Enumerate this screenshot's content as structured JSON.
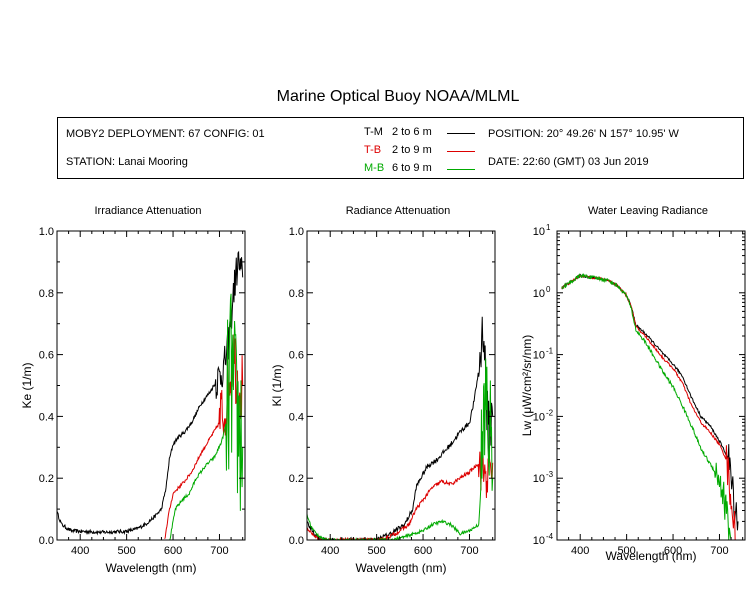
{
  "title": "Marine Optical Buoy NOAA/MLML",
  "info": {
    "deployment": "MOBY2 DEPLOYMENT: 67 CONFIG: 01",
    "station": "STATION: Lanai Mooring",
    "position": "POSITION: 20° 49.26' N   157° 10.95' W",
    "date": "DATE: 22:60 (GMT) 03 Jun 2019",
    "legend": [
      {
        "code": "T-M",
        "range": "2 to 6  m",
        "color": "#000000"
      },
      {
        "code": "T-B",
        "range": "2 to 9  m",
        "color": "#dd0000"
      },
      {
        "code": "M-B",
        "range": "6 to 9  m",
        "color": "#00aa00"
      }
    ]
  },
  "chart_data": [
    {
      "type": "line",
      "title": "Irradiance Attenuation",
      "xlabel": "Wavelength (nm)",
      "ylabel": "Ke  (1/m)",
      "xlim": [
        350,
        755
      ],
      "ylim": [
        0,
        1.0
      ],
      "xticks": [
        400,
        500,
        600,
        700
      ],
      "yticks": [
        "0.0",
        "0.2",
        "0.4",
        "0.6",
        "0.8",
        "1.0"
      ],
      "series": [
        {
          "name": "T-M",
          "color": "#000000",
          "noise": 0.006,
          "noisy_from": 690,
          "noisy_amp": 0.06,
          "points": [
            [
              350,
              0.09
            ],
            [
              360,
              0.05
            ],
            [
              380,
              0.03
            ],
            [
              400,
              0.028
            ],
            [
              450,
              0.025
            ],
            [
              500,
              0.028
            ],
            [
              520,
              0.035
            ],
            [
              540,
              0.05
            ],
            [
              560,
              0.075
            ],
            [
              575,
              0.1
            ],
            [
              585,
              0.17
            ],
            [
              592,
              0.26
            ],
            [
              600,
              0.31
            ],
            [
              610,
              0.33
            ],
            [
              625,
              0.35
            ],
            [
              640,
              0.38
            ],
            [
              660,
              0.44
            ],
            [
              680,
              0.48
            ],
            [
              700,
              0.53
            ],
            [
              710,
              0.56
            ],
            [
              720,
              0.64
            ],
            [
              730,
              0.8
            ],
            [
              740,
              0.9
            ],
            [
              750,
              0.85
            ]
          ]
        },
        {
          "name": "T-B",
          "color": "#dd0000",
          "noise": 0.005,
          "noisy_from": 700,
          "noisy_amp": 0.12,
          "points": [
            [
              582,
              0.0
            ],
            [
              590,
              0.08
            ],
            [
              600,
              0.15
            ],
            [
              612,
              0.17
            ],
            [
              625,
              0.19
            ],
            [
              640,
              0.22
            ],
            [
              660,
              0.28
            ],
            [
              680,
              0.33
            ],
            [
              700,
              0.38
            ],
            [
              710,
              0.42
            ],
            [
              720,
              0.5
            ],
            [
              730,
              0.62
            ],
            [
              740,
              0.5
            ],
            [
              750,
              0.5
            ]
          ]
        },
        {
          "name": "M-B",
          "color": "#00aa00",
          "noise": 0.005,
          "noisy_from": 715,
          "noisy_amp": 0.3,
          "points": [
            [
              593,
              0.0
            ],
            [
              605,
              0.1
            ],
            [
              620,
              0.13
            ],
            [
              635,
              0.15
            ],
            [
              650,
              0.2
            ],
            [
              670,
              0.24
            ],
            [
              690,
              0.27
            ],
            [
              705,
              0.32
            ],
            [
              715,
              0.38
            ],
            [
              725,
              0.55
            ],
            [
              735,
              0.4
            ],
            [
              745,
              0.35
            ],
            [
              750,
              0.3
            ]
          ]
        }
      ]
    },
    {
      "type": "line",
      "title": "Radiance Attenuation",
      "xlabel": "Wavelength (nm)",
      "ylabel": "Kl  (1/m)",
      "xlim": [
        350,
        755
      ],
      "ylim": [
        0,
        1.0
      ],
      "xticks": [
        400,
        500,
        600,
        700
      ],
      "yticks": [
        "0.0",
        "0.2",
        "0.4",
        "0.6",
        "0.8",
        "1.0"
      ],
      "series": [
        {
          "name": "T-M",
          "color": "#000000",
          "noise": 0.008,
          "noisy_from": 720,
          "noisy_amp": 0.1,
          "points": [
            [
              350,
              0.06
            ],
            [
              360,
              0.03
            ],
            [
              370,
              0.01
            ],
            [
              380,
              0.0
            ],
            [
              500,
              0.0
            ],
            [
              530,
              0.02
            ],
            [
              560,
              0.05
            ],
            [
              578,
              0.1
            ],
            [
              585,
              0.17
            ],
            [
              595,
              0.2
            ],
            [
              610,
              0.24
            ],
            [
              630,
              0.26
            ],
            [
              660,
              0.31
            ],
            [
              680,
              0.35
            ],
            [
              700,
              0.38
            ],
            [
              710,
              0.45
            ],
            [
              720,
              0.55
            ],
            [
              730,
              0.7
            ],
            [
              740,
              0.35
            ],
            [
              750,
              0.4
            ]
          ]
        },
        {
          "name": "T-B",
          "color": "#dd0000",
          "noise": 0.006,
          "noisy_from": 720,
          "noisy_amp": 0.08,
          "points": [
            [
              350,
              0.04
            ],
            [
              360,
              0.02
            ],
            [
              380,
              0.0
            ],
            [
              510,
              0.0
            ],
            [
              540,
              0.02
            ],
            [
              570,
              0.05
            ],
            [
              585,
              0.1
            ],
            [
              600,
              0.13
            ],
            [
              620,
              0.17
            ],
            [
              640,
              0.19
            ],
            [
              660,
              0.18
            ],
            [
              680,
              0.2
            ],
            [
              700,
              0.22
            ],
            [
              720,
              0.25
            ],
            [
              740,
              0.2
            ],
            [
              750,
              0.25
            ]
          ]
        },
        {
          "name": "M-B",
          "color": "#00aa00",
          "noise": 0.005,
          "noisy_from": 725,
          "noisy_amp": 0.25,
          "points": [
            [
              350,
              0.08
            ],
            [
              360,
              0.04
            ],
            [
              370,
              0.02
            ],
            [
              390,
              0.0
            ],
            [
              530,
              0.0
            ],
            [
              560,
              0.01
            ],
            [
              580,
              0.02
            ],
            [
              600,
              0.03
            ],
            [
              620,
              0.05
            ],
            [
              640,
              0.06
            ],
            [
              660,
              0.05
            ],
            [
              680,
              0.02
            ],
            [
              700,
              0.03
            ],
            [
              720,
              0.05
            ],
            [
              735,
              0.45
            ],
            [
              745,
              0.3
            ],
            [
              750,
              0.2
            ]
          ]
        }
      ]
    },
    {
      "type": "line",
      "title": "Water Leaving Radiance",
      "xlabel": "Wavelength (nm)",
      "ylabel": "Lw  (μW/cm²/sr/nm)",
      "yscale": "log",
      "xlim": [
        350,
        755
      ],
      "ylim": [
        0.0001,
        10
      ],
      "xticks": [
        400,
        500,
        600,
        700
      ],
      "yticks": [
        "10^-4",
        "10^-3",
        "10^-2",
        "10^-1",
        "10^0",
        "10^1"
      ],
      "series": [
        {
          "name": "T-M",
          "color": "#000000",
          "noise": 0.02,
          "noisy_from": 720,
          "noisy_amp": 0.3,
          "points": [
            [
              360,
              1.2
            ],
            [
              380,
              1.5
            ],
            [
              400,
              1.9
            ],
            [
              420,
              1.8
            ],
            [
              440,
              1.7
            ],
            [
              460,
              1.6
            ],
            [
              480,
              1.3
            ],
            [
              500,
              0.9
            ],
            [
              510,
              0.6
            ],
            [
              520,
              0.3
            ],
            [
              540,
              0.22
            ],
            [
              560,
              0.15
            ],
            [
              580,
              0.1
            ],
            [
              600,
              0.07
            ],
            [
              620,
              0.045
            ],
            [
              640,
              0.02
            ],
            [
              660,
              0.01
            ],
            [
              680,
              0.007
            ],
            [
              700,
              0.004
            ],
            [
              720,
              0.002
            ],
            [
              730,
              0.0005
            ],
            [
              740,
              0.0002
            ]
          ]
        },
        {
          "name": "T-B",
          "color": "#dd0000",
          "noise": 0.02,
          "noisy_from": 715,
          "noisy_amp": 0.3,
          "points": [
            [
              360,
              1.2
            ],
            [
              380,
              1.5
            ],
            [
              400,
              1.9
            ],
            [
              420,
              1.8
            ],
            [
              440,
              1.7
            ],
            [
              460,
              1.6
            ],
            [
              480,
              1.3
            ],
            [
              500,
              0.9
            ],
            [
              510,
              0.6
            ],
            [
              520,
              0.28
            ],
            [
              540,
              0.2
            ],
            [
              560,
              0.13
            ],
            [
              580,
              0.085
            ],
            [
              600,
              0.06
            ],
            [
              620,
              0.035
            ],
            [
              640,
              0.015
            ],
            [
              660,
              0.008
            ],
            [
              680,
              0.0055
            ],
            [
              700,
              0.0035
            ],
            [
              715,
              0.002
            ],
            [
              725,
              0.0005
            ],
            [
              735,
              0.0001
            ]
          ]
        },
        {
          "name": "M-B",
          "color": "#00aa00",
          "noise": 0.03,
          "noisy_from": 690,
          "noisy_amp": 0.3,
          "points": [
            [
              360,
              1.2
            ],
            [
              380,
              1.5
            ],
            [
              400,
              1.9
            ],
            [
              420,
              1.8
            ],
            [
              440,
              1.7
            ],
            [
              460,
              1.6
            ],
            [
              480,
              1.3
            ],
            [
              500,
              0.9
            ],
            [
              510,
              0.55
            ],
            [
              520,
              0.25
            ],
            [
              540,
              0.16
            ],
            [
              560,
              0.09
            ],
            [
              580,
              0.05
            ],
            [
              600,
              0.03
            ],
            [
              620,
              0.015
            ],
            [
              640,
              0.007
            ],
            [
              660,
              0.003
            ],
            [
              680,
              0.0017
            ],
            [
              700,
              0.001
            ],
            [
              715,
              0.0003
            ],
            [
              725,
              0.0001
            ]
          ]
        }
      ]
    }
  ]
}
